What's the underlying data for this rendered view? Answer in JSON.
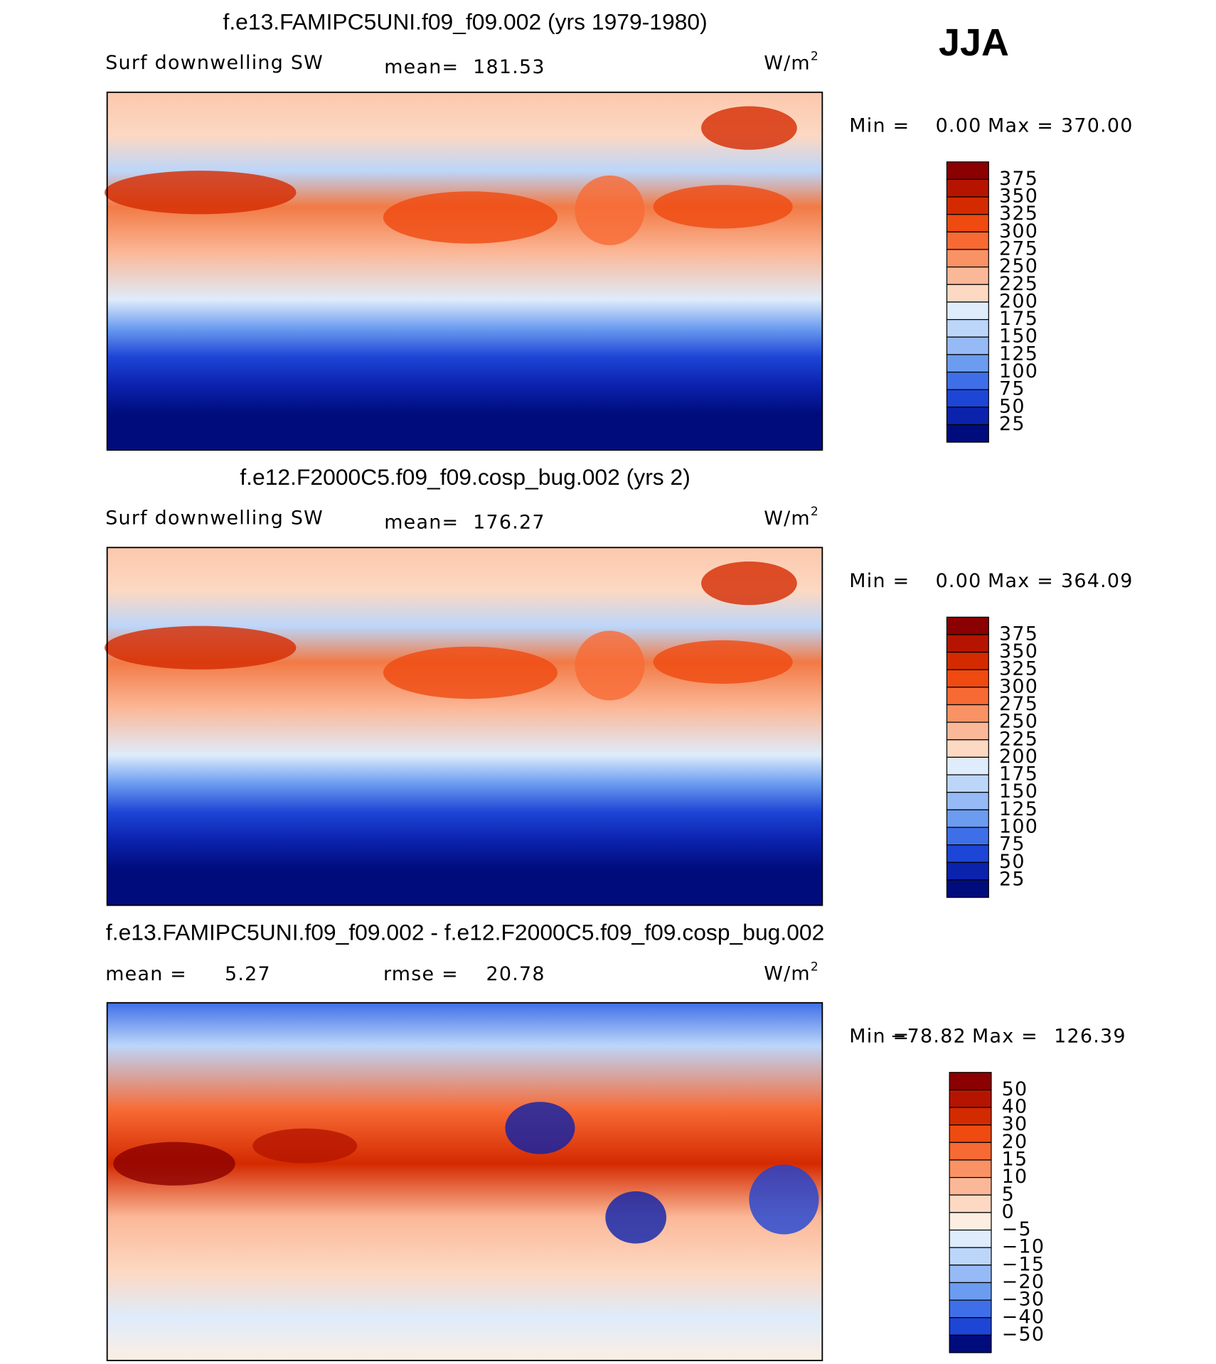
{
  "season": "JJA",
  "panels": [
    {
      "title": "f.e13.FAMIPC5UNI.f09_f09.002 (yrs 1979-1980)",
      "variable": "Surf downwelling SW",
      "stat1_label": "mean=",
      "stat1": "181.53",
      "units": "W/m",
      "units_sup": "2",
      "min_label": "Min =",
      "min": "0.00",
      "max_label": "Max =",
      "max": "370.00",
      "colorbar": {
        "labels": [
          "375",
          "350",
          "325",
          "300",
          "275",
          "250",
          "225",
          "200",
          "175",
          "150",
          "125",
          "100",
          "75",
          "50",
          "25"
        ],
        "colors": [
          "#8b0000",
          "#b51500",
          "#d42a00",
          "#ef4a10",
          "#f76a34",
          "#f99264",
          "#fbb898",
          "#fdd8c2",
          "#deecfb",
          "#bcd6fa",
          "#95baf5",
          "#6b9cf0",
          "#3f6fe8",
          "#1d45d6",
          "#0b22ad",
          "#000c7c"
        ]
      }
    },
    {
      "title": "f.e12.F2000C5.f09_f09.cosp_bug.002 (yrs 2)",
      "variable": "Surf downwelling SW",
      "stat1_label": "mean=",
      "stat1": "176.27",
      "units": "W/m",
      "units_sup": "2",
      "min_label": "Min =",
      "min": "0.00",
      "max_label": "Max =",
      "max": "364.09",
      "colorbar": {
        "labels": [
          "375",
          "350",
          "325",
          "300",
          "275",
          "250",
          "225",
          "200",
          "175",
          "150",
          "125",
          "100",
          "75",
          "50",
          "25"
        ],
        "colors": [
          "#8b0000",
          "#b51500",
          "#d42a00",
          "#ef4a10",
          "#f76a34",
          "#f99264",
          "#fbb898",
          "#fdd8c2",
          "#deecfb",
          "#bcd6fa",
          "#95baf5",
          "#6b9cf0",
          "#3f6fe8",
          "#1d45d6",
          "#0b22ad",
          "#000c7c"
        ]
      }
    },
    {
      "title": "f.e13.FAMIPC5UNI.f09_f09.002 - f.e12.F2000C5.f09_f09.cosp_bug.002",
      "stat1_label": "mean =",
      "stat1": "5.27",
      "stat2_label": "rmse =",
      "stat2": "20.78",
      "units": "W/m",
      "units_sup": "2",
      "min_label": "Min =",
      "min": "−78.82",
      "max_label": "Max =",
      "max": "126.39",
      "colorbar": {
        "labels": [
          "50",
          "40",
          "30",
          "20",
          "15",
          "10",
          "5",
          "0",
          "−5",
          "−10",
          "−15",
          "−20",
          "−30",
          "−40",
          "−50"
        ],
        "colors": [
          "#8b0000",
          "#b51500",
          "#d42a00",
          "#ef4a10",
          "#f76a34",
          "#f99264",
          "#fbb898",
          "#fdd8c2",
          "#fdeee2",
          "#deecfb",
          "#bcd6fa",
          "#95baf5",
          "#6b9cf0",
          "#3f6fe8",
          "#1d45d6",
          "#000c7c"
        ]
      }
    }
  ]
}
